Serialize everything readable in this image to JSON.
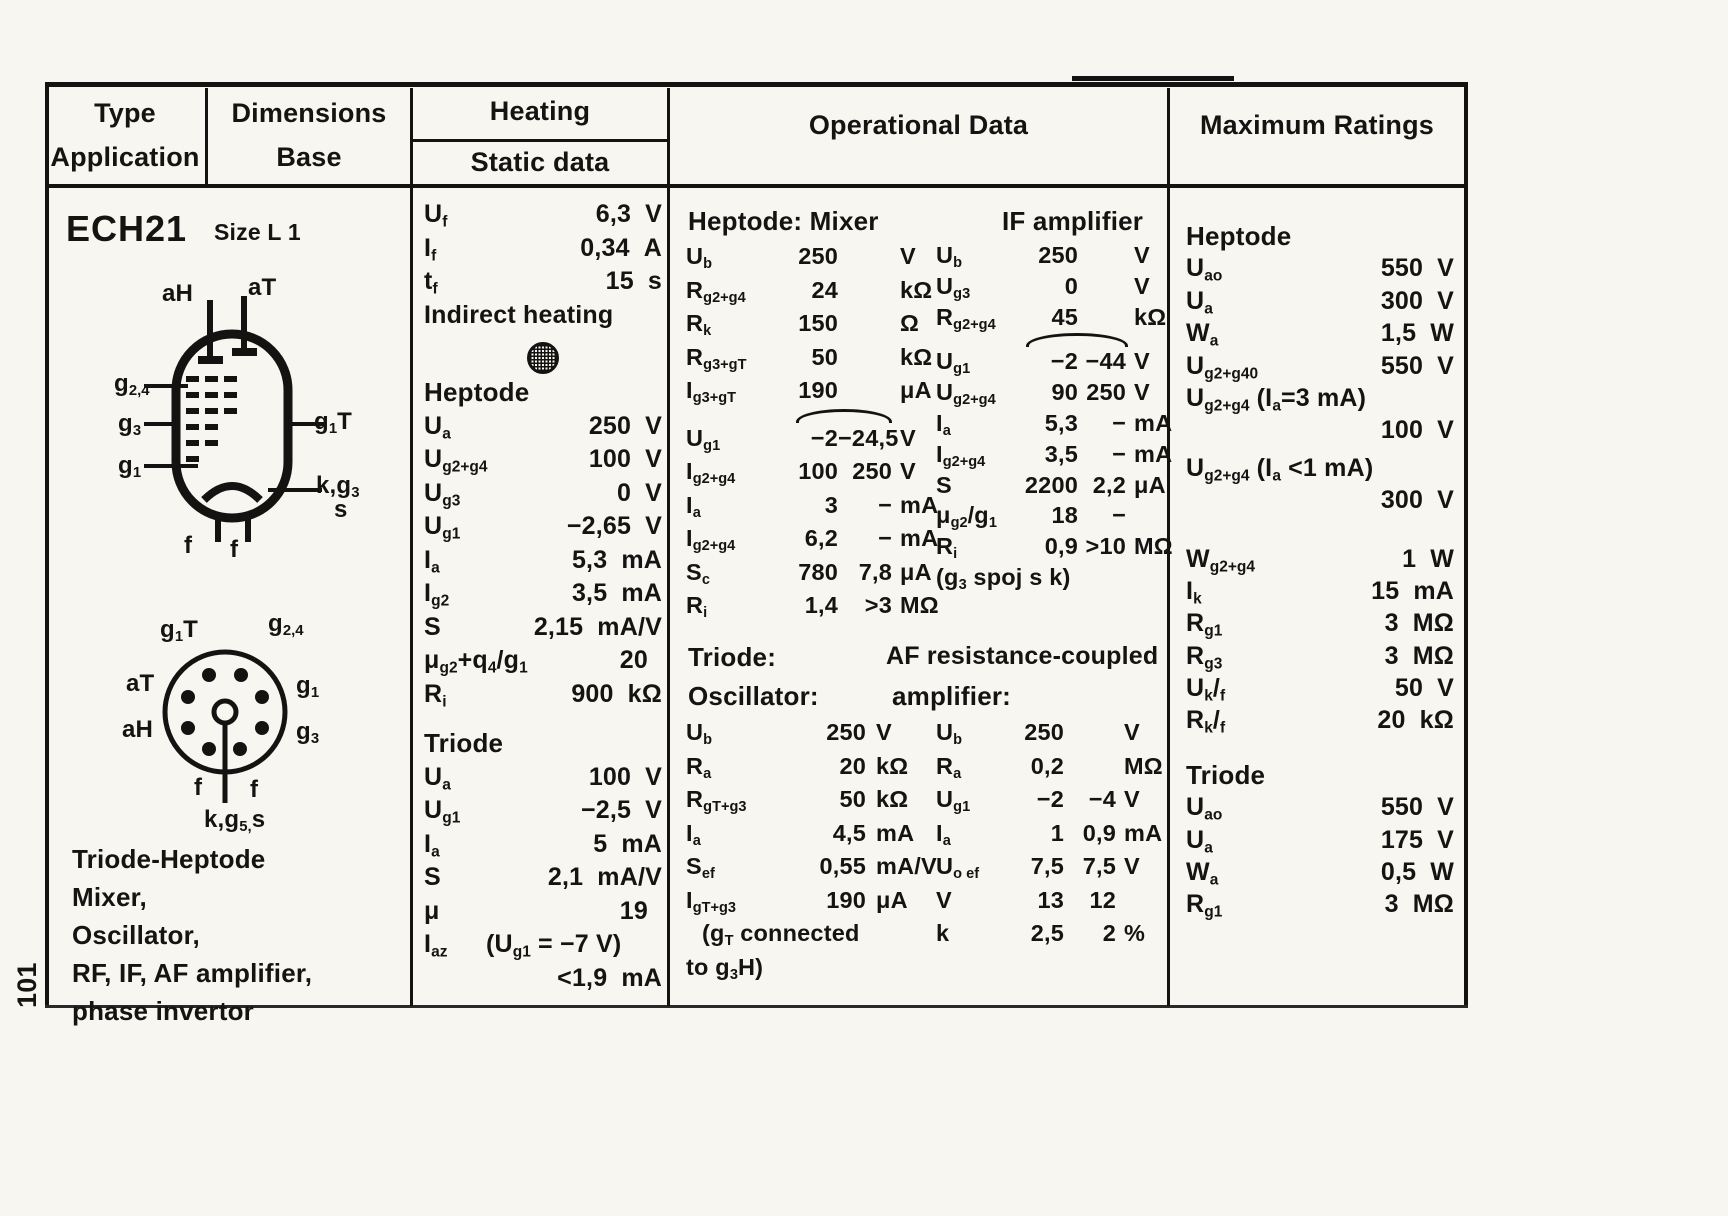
{
  "page": {
    "number": "101"
  },
  "colors": {
    "paper": "#f7f6f1",
    "ink": "#161412"
  },
  "header": {
    "type": "Type",
    "application": "Application",
    "dimensions": "Dimensions",
    "base": "Base",
    "heating": "Heating",
    "static_data": "Static data",
    "operational": "Operational Data",
    "maximum": "Maximum Ratings"
  },
  "type_col": {
    "tube_type": "ECH21",
    "size": "Size L 1",
    "applications": [
      "Triode-Heptode",
      "Mixer,",
      "Oscillator,",
      "RF, IF, AF amplifier,",
      "phase invertor"
    ],
    "side_diagram": {
      "top_left": "aH",
      "top_right": "aT",
      "left1": "g_{2,4}",
      "left2": "g_{3}",
      "left3": "g_{1}",
      "right1": "g_{1}T",
      "right2": "k,g_{3}",
      "right3": "s",
      "bottom_left": "f",
      "bottom_right": "f"
    },
    "base_diagram": {
      "top_left": "g_{1}T",
      "top_right": "g_{2,4}",
      "left": "aT",
      "right": "g_{1}",
      "lower_left": "aH",
      "lower_right": "g_{3}",
      "bottom_left": "f",
      "bottom_right": "f",
      "bottom": "k,g_{5,}s"
    }
  },
  "heating": {
    "rows": [
      {
        "label": "U_{f}",
        "v1": "6,3",
        "unit": "V"
      },
      {
        "label": "I_{f}",
        "v1": "0,34",
        "unit": "A"
      },
      {
        "label": "t_{f}",
        "v1": "15",
        "unit": "s"
      },
      {
        "label": "Indirect heating",
        "cls": "wide"
      },
      {
        "label": "Heptode",
        "cls": "section gap-xl"
      },
      {
        "label": "U_{a}",
        "v1": "250",
        "unit": "V"
      },
      {
        "label": "U_{g2+g4}",
        "v1": "100",
        "unit": "V"
      },
      {
        "label": "U_{g3}",
        "v1": "0",
        "unit": "V"
      },
      {
        "label": "U_{g1}",
        "v1": "−2,65",
        "unit": "V"
      },
      {
        "label": "I_{a}",
        "v1": "5,3",
        "unit": "mA"
      },
      {
        "label": "I_{g2}",
        "v1": "3,5",
        "unit": "mA"
      },
      {
        "label": "S",
        "v1": "2,15",
        "unit": "mA/V"
      },
      {
        "label": "μ_{g2}+q_{4}/g_{1}",
        "v1": "20"
      },
      {
        "label": "R_{i}",
        "v1": "900",
        "unit": "kΩ"
      },
      {
        "label": "Triode",
        "cls": "section"
      },
      {
        "label": "U_{a}",
        "v1": "100",
        "unit": "V"
      },
      {
        "label": "U_{g1}",
        "v1": "−2,5",
        "unit": "V"
      },
      {
        "label": "I_{a}",
        "v1": "5",
        "unit": "mA"
      },
      {
        "label": "S",
        "v1": "2,1",
        "unit": "mA/V"
      },
      {
        "label": "μ",
        "v1": "19"
      },
      {
        "label": "I_{az}",
        "v1": "(U_{g1} = −7 V)",
        "cls": "inline"
      },
      {
        "v1": "<1,9",
        "unit": "mA"
      }
    ]
  },
  "operational": {
    "mixer_title": "Heptode: Mixer",
    "if_title": "IF amplifier",
    "mixer_rows": [
      {
        "label": "U_{b}",
        "v1": "250",
        "unit": "V"
      },
      {
        "label": "R_{g2+g4}",
        "v1": "24",
        "unit": "kΩ"
      },
      {
        "label": "R_{k}",
        "v1": "150",
        "unit": "Ω"
      },
      {
        "label": "R_{g3+gT}",
        "v1": "50",
        "unit": "kΩ"
      },
      {
        "label": "I_{g3+gT}",
        "v1": "190",
        "unit": "μA"
      },
      {
        "label": "U_{g1}",
        "v1": "−2",
        "v2": "−24,5",
        "unit": "V",
        "cls": "brace"
      },
      {
        "label": "I_{g2+g4}",
        "v1": "100",
        "v2": "250",
        "unit": "V"
      },
      {
        "label": "I_{a}",
        "v1": "3",
        "v2": "−",
        "unit": "mA"
      },
      {
        "label": "I_{g2+g4}",
        "v1": "6,2",
        "v2": "−",
        "unit": "mA"
      },
      {
        "label": "S_{c}",
        "v1": "780",
        "v2": "7,8",
        "unit": "μA"
      },
      {
        "label": "R_{i}",
        "v1": "1,4",
        "v2": ">3",
        "unit": "MΩ"
      }
    ],
    "if_rows": [
      {
        "label": "U_{b}",
        "v1": "250",
        "unit": "V"
      },
      {
        "label": "U_{g3}",
        "v1": "0",
        "unit": "V"
      },
      {
        "label": "R_{g2+g4}",
        "v1": "45",
        "unit": "kΩ"
      },
      {
        "label": "U_{g1}",
        "v1": "−2",
        "v2": "−44",
        "unit": "V",
        "cls": "brace"
      },
      {
        "label": "U_{g2+g4}",
        "v1": "90",
        "v2": "250",
        "unit": "V"
      },
      {
        "label": "I_{a}",
        "v1": "5,3",
        "v2": "−",
        "unit": "mA"
      },
      {
        "label": "I_{g2+g4}",
        "v1": "3,5",
        "v2": "−",
        "unit": "mA"
      },
      {
        "label": "S",
        "v1": "2200",
        "v2": "2,2",
        "unit": "μA"
      },
      {
        "label": "μ_{g2}/g_{1}",
        "v1": "18",
        "v2": "−"
      },
      {
        "label": "R_{i}",
        "v1": "0,9",
        "v2": ">10",
        "unit": "MΩ"
      },
      {
        "label": "(g_{3} spoj s k)",
        "cls": "wide"
      }
    ],
    "triode_title": "Triode:",
    "osc_title": "Oscillator:",
    "af_title_line1": "AF resistance-coupled",
    "af_title_line2": "amplifier:",
    "osc_rows": [
      {
        "label": "U_{b}",
        "v1": "250",
        "unit": "V"
      },
      {
        "label": "R_{a}",
        "v1": "20",
        "unit": "kΩ"
      },
      {
        "label": "R_{gT+g3}",
        "v1": "50",
        "unit": "kΩ"
      },
      {
        "label": "I_{a}",
        "v1": "4,5",
        "unit": "mA"
      },
      {
        "label": "S_{ef}",
        "v1": "0,55",
        "unit": "mA/V"
      },
      {
        "label": "I_{gT+g3}",
        "v1": "190",
        "unit": "μA"
      },
      {
        "label": "(g_{T} connected",
        "cls": "wide indent"
      },
      {
        "label": "to g_{3}H)",
        "cls": "wide center"
      }
    ],
    "af_rows": [
      {
        "label": "U_{b}",
        "v1": "250",
        "v2": "",
        "unit": "V"
      },
      {
        "label": "R_{a}",
        "v1": "0,2",
        "v2": "",
        "unit": "MΩ"
      },
      {
        "label": "U_{g1}",
        "v1": "−2",
        "v2": "−4",
        "unit": "V"
      },
      {
        "label": "I_{a}",
        "v1": "1",
        "v2": "0,9",
        "unit": "mA"
      },
      {
        "label": "U_{o ef}",
        "v1": "7,5",
        "v2": "7,5",
        "unit": "V"
      },
      {
        "label": "V",
        "v1": "13",
        "v2": "12"
      },
      {
        "label": "k",
        "v1": "2,5",
        "v2": "2",
        "unit": "%"
      }
    ]
  },
  "maximum": {
    "rows": [
      {
        "label": "Heptode",
        "cls": "section first"
      },
      {
        "label": "U_{ao}",
        "v1": "550",
        "unit": "V"
      },
      {
        "label": "U_{a}",
        "v1": "300",
        "unit": "V"
      },
      {
        "label": "W_{a}",
        "v1": "1,5",
        "unit": "W"
      },
      {
        "label": "U_{g2+g40}",
        "v1": "550",
        "unit": "V"
      },
      {
        "label": "U_{g2+g4} (I_{a}=3 mA)",
        "cls": "long"
      },
      {
        "v1": "100",
        "unit": "V"
      },
      {
        "label": "U_{g2+g4} (I_{a} <1 mA)",
        "cls": "long gap-sm"
      },
      {
        "v1": "300",
        "unit": "V"
      },
      {
        "label": "W_{g2+g4}",
        "v1": "1",
        "unit": "W",
        "cls": "gap"
      },
      {
        "label": "I_{k}",
        "v1": "15",
        "unit": "mA"
      },
      {
        "label": "R_{g1}",
        "v1": "3",
        "unit": "MΩ"
      },
      {
        "label": "R_{g3}",
        "v1": "3",
        "unit": "MΩ"
      },
      {
        "label": "U_{k}/_{f}",
        "v1": "50",
        "unit": "V"
      },
      {
        "label": "R_{k}/_{f}",
        "v1": "20",
        "unit": "kΩ"
      },
      {
        "label": "Triode",
        "cls": "section"
      },
      {
        "label": "U_{ao}",
        "v1": "550",
        "unit": "V"
      },
      {
        "label": "U_{a}",
        "v1": "175",
        "unit": "V"
      },
      {
        "label": "W_{a}",
        "v1": "0,5",
        "unit": "W"
      },
      {
        "label": "R_{g1}",
        "v1": "3",
        "unit": "MΩ"
      }
    ]
  }
}
